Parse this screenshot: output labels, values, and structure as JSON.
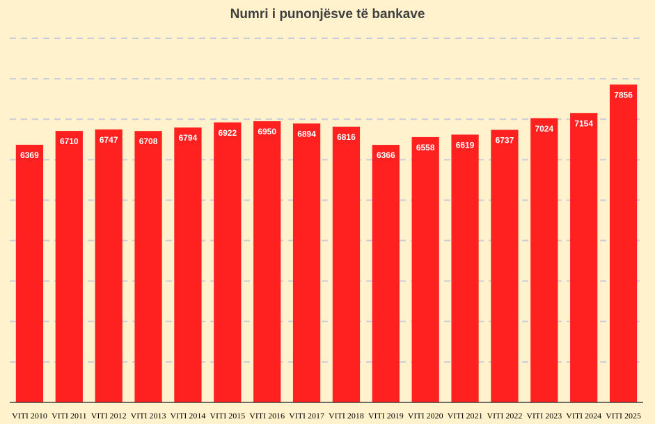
{
  "chart_data": {
    "type": "bar",
    "title": "Numri i punonjësve të bankave",
    "xlabel": "",
    "ylabel": "",
    "categories": [
      "VITI 2010",
      "VITI 2011",
      "VITI 2012",
      "VITI 2013",
      "VITI 2014",
      "VITI 2015",
      "VITI 2016",
      "VITI 2017",
      "VITI 2018",
      "VITI 2019",
      "VITI 2020",
      "VITI 2021",
      "VITI 2022",
      "VITI 2023",
      "VITI 2024",
      "VITI 2025"
    ],
    "values": [
      6369,
      6710,
      6747,
      6708,
      6794,
      6922,
      6950,
      6894,
      6816,
      6366,
      6558,
      6619,
      6737,
      7024,
      7154,
      7856
    ],
    "ylim": [
      0,
      9000
    ],
    "grid": true,
    "data_labels": true,
    "legend": "none",
    "colors": {
      "bar": "#ff2020",
      "background": "#fff2cc",
      "title": "#404040",
      "grid": "#c9ccd9"
    }
  }
}
